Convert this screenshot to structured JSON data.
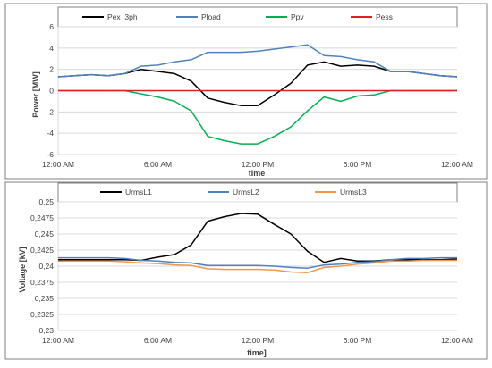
{
  "chart_data": [
    {
      "type": "line",
      "ylabel": "Power [MW]",
      "xlabel": "time",
      "x_ticks": [
        "12:00 AM",
        "6:00 AM",
        "12:00 PM",
        "6:00 PM",
        "12:00 AM"
      ],
      "y_ticks": [
        "6",
        "4",
        "2",
        "0",
        "-2",
        "-4",
        "-6"
      ],
      "xlim": [
        0,
        24
      ],
      "ylim": [
        -6,
        6
      ],
      "grid": "horizontal",
      "legend": "top",
      "series": [
        {
          "name": "Pex_3ph",
          "color": "#000000",
          "x": [
            0,
            1,
            2,
            3,
            4,
            5,
            6,
            7,
            8,
            9,
            10,
            11,
            12,
            13,
            14,
            15,
            16,
            17,
            18,
            19,
            20,
            21,
            22,
            23,
            24
          ],
          "y": [
            1.3,
            1.4,
            1.5,
            1.4,
            1.6,
            2.0,
            1.8,
            1.6,
            0.9,
            -0.7,
            -1.1,
            -1.4,
            -1.4,
            -0.4,
            0.7,
            2.4,
            2.7,
            2.3,
            2.4,
            2.3,
            1.8,
            1.8,
            1.6,
            1.4,
            1.3
          ]
        },
        {
          "name": "Pload",
          "color": "#4f81bd",
          "x": [
            0,
            1,
            2,
            3,
            4,
            5,
            6,
            7,
            8,
            9,
            10,
            11,
            12,
            13,
            14,
            15,
            16,
            17,
            18,
            19,
            20,
            21,
            22,
            23,
            24
          ],
          "y": [
            1.3,
            1.4,
            1.5,
            1.4,
            1.6,
            2.3,
            2.4,
            2.7,
            2.9,
            3.6,
            3.6,
            3.6,
            3.7,
            3.9,
            4.1,
            4.3,
            3.3,
            3.2,
            2.9,
            2.7,
            1.8,
            1.8,
            1.6,
            1.4,
            1.3
          ]
        },
        {
          "name": "Ppv",
          "color": "#00b050",
          "x": [
            0,
            1,
            2,
            3,
            4,
            5,
            6,
            7,
            8,
            9,
            10,
            11,
            12,
            13,
            14,
            15,
            16,
            17,
            18,
            19,
            20,
            21,
            22,
            23,
            24
          ],
          "y": [
            0,
            0,
            0,
            0,
            0,
            -0.3,
            -0.6,
            -1.0,
            -1.9,
            -4.3,
            -4.7,
            -5.0,
            -5.0,
            -4.3,
            -3.4,
            -1.9,
            -0.6,
            -1.0,
            -0.5,
            -0.4,
            0,
            0,
            0,
            0,
            0
          ]
        },
        {
          "name": "Pess",
          "color": "#e02020",
          "x": [
            0,
            24
          ],
          "y": [
            0,
            0
          ]
        }
      ]
    },
    {
      "type": "line",
      "ylabel": "Voltage [kV]",
      "xlabel": "time]",
      "x_ticks": [
        "12:00 AM",
        "6:00 AM",
        "12:00 PM",
        "6:00 PM",
        "12:00 AM"
      ],
      "y_ticks": [
        "0,25",
        "0,2475",
        "0,245",
        "0,2425",
        "0,24",
        "0,2375",
        "0,235",
        "0,2325",
        "0,23"
      ],
      "xlim": [
        0,
        24
      ],
      "ylim": [
        0.23,
        0.25
      ],
      "grid": "horizontal",
      "legend": "top",
      "series": [
        {
          "name": "UrmsL1",
          "color": "#000000",
          "x": [
            0,
            1,
            2,
            3,
            4,
            5,
            6,
            7,
            8,
            9,
            10,
            11,
            12,
            13,
            14,
            15,
            16,
            17,
            18,
            19,
            20,
            21,
            22,
            23,
            24
          ],
          "y": [
            0.241,
            0.241,
            0.241,
            0.241,
            0.241,
            0.2409,
            0.2414,
            0.2418,
            0.2433,
            0.247,
            0.2477,
            0.2482,
            0.2481,
            0.2465,
            0.245,
            0.2423,
            0.2406,
            0.2412,
            0.2408,
            0.2408,
            0.241,
            0.241,
            0.241,
            0.241,
            0.2411
          ]
        },
        {
          "name": "UrmsL2",
          "color": "#4f81bd",
          "x": [
            0,
            1,
            2,
            3,
            4,
            5,
            6,
            7,
            8,
            9,
            10,
            11,
            12,
            13,
            14,
            15,
            16,
            17,
            18,
            19,
            20,
            21,
            22,
            23,
            24
          ],
          "y": [
            0.2413,
            0.2413,
            0.2413,
            0.2413,
            0.2412,
            0.2409,
            0.2408,
            0.2406,
            0.2405,
            0.2401,
            0.2401,
            0.2401,
            0.2401,
            0.24,
            0.2398,
            0.2397,
            0.2402,
            0.2403,
            0.2406,
            0.2407,
            0.241,
            0.2412,
            0.2412,
            0.2413,
            0.2413
          ]
        },
        {
          "name": "UrmsL3",
          "color": "#f79646",
          "x": [
            0,
            1,
            2,
            3,
            4,
            5,
            6,
            7,
            8,
            9,
            10,
            11,
            12,
            13,
            14,
            15,
            16,
            17,
            18,
            19,
            20,
            21,
            22,
            23,
            24
          ],
          "y": [
            0.2408,
            0.2408,
            0.2408,
            0.2408,
            0.2407,
            0.2405,
            0.2404,
            0.2402,
            0.2401,
            0.2396,
            0.2395,
            0.2395,
            0.2395,
            0.2394,
            0.2391,
            0.239,
            0.2398,
            0.24,
            0.2403,
            0.2405,
            0.2408,
            0.2408,
            0.2409,
            0.2409,
            0.2409
          ]
        }
      ]
    }
  ]
}
